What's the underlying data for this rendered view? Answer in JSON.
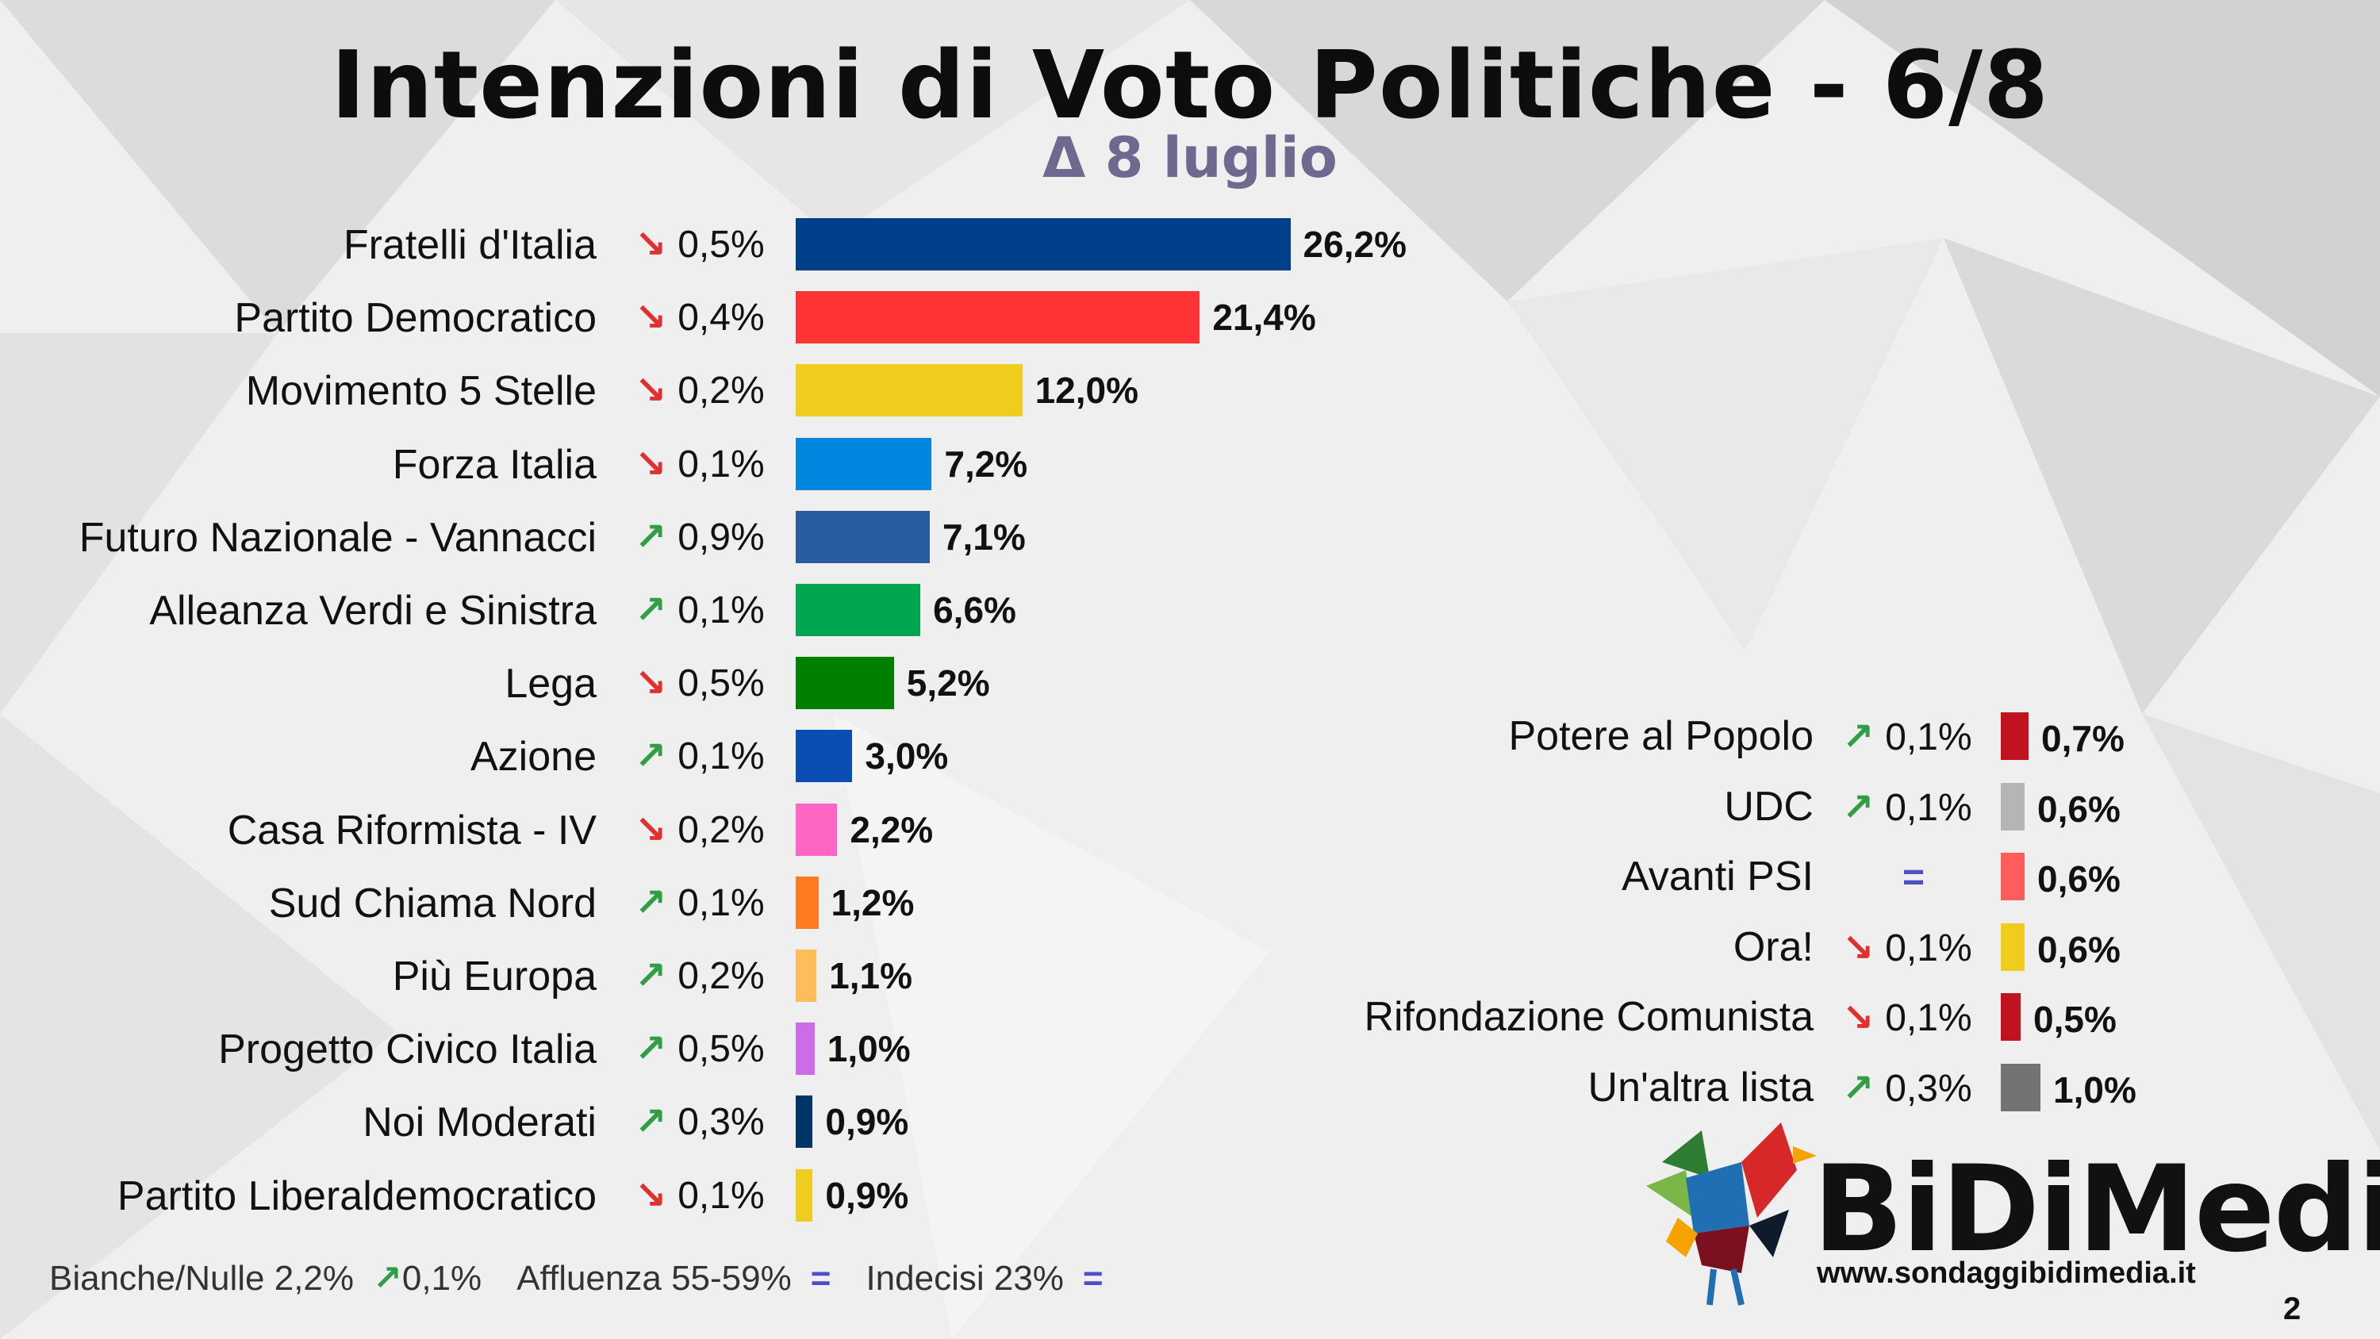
{
  "header": {
    "title": "Intenzioni di Voto Politiche - 6/8",
    "subtitle": "Δ 8 luglio"
  },
  "chart_data": {
    "type": "bar",
    "title": "Intenzioni di Voto Politiche - 6/8",
    "subtitle": "Δ 8 luglio",
    "unit": "%",
    "main": [
      {
        "name": "Fratelli d'Italia",
        "value": 26.2,
        "label": "26,2%",
        "delta": "0,5%",
        "trend": "down",
        "color": "#003f8a"
      },
      {
        "name": "Partito Democratico",
        "value": 21.4,
        "label": "21,4%",
        "delta": "0,4%",
        "trend": "down",
        "color": "#ff3333"
      },
      {
        "name": "Movimento 5 Stelle",
        "value": 12.0,
        "label": "12,0%",
        "delta": "0,2%",
        "trend": "down",
        "color": "#f0cc1e"
      },
      {
        "name": "Forza Italia",
        "value": 7.2,
        "label": "7,2%",
        "delta": "0,1%",
        "trend": "down",
        "color": "#0088e0"
      },
      {
        "name": "Futuro Nazionale - Vannacci",
        "value": 7.1,
        "label": "7,1%",
        "delta": "0,9%",
        "trend": "up",
        "color": "#2a5ca0"
      },
      {
        "name": "Alleanza Verdi e Sinistra",
        "value": 6.6,
        "label": "6,6%",
        "delta": "0,1%",
        "trend": "up",
        "color": "#00a650"
      },
      {
        "name": "Lega",
        "value": 5.2,
        "label": "5,2%",
        "delta": "0,5%",
        "trend": "down",
        "color": "#008000"
      },
      {
        "name": "Azione",
        "value": 3.0,
        "label": "3,0%",
        "delta": "0,1%",
        "trend": "up",
        "color": "#0a4db3"
      },
      {
        "name": "Casa Riformista - IV",
        "value": 2.2,
        "label": "2,2%",
        "delta": "0,2%",
        "trend": "down",
        "color": "#ff66c4"
      },
      {
        "name": "Sud Chiama Nord",
        "value": 1.2,
        "label": "1,2%",
        "delta": "0,1%",
        "trend": "up",
        "color": "#ff7a21"
      },
      {
        "name": "Più Europa",
        "value": 1.1,
        "label": "1,1%",
        "delta": "0,2%",
        "trend": "up",
        "color": "#ffbd59"
      },
      {
        "name": "Progetto Civico Italia",
        "value": 1.0,
        "label": "1,0%",
        "delta": "0,5%",
        "trend": "up",
        "color": "#cc6ce7"
      },
      {
        "name": "Noi Moderati",
        "value": 0.9,
        "label": "0,9%",
        "delta": "0,3%",
        "trend": "up",
        "color": "#003366"
      },
      {
        "name": "Partito Liberaldemocratico",
        "value": 0.9,
        "label": "0,9%",
        "delta": "0,1%",
        "trend": "down",
        "color": "#f0cc1e"
      }
    ],
    "minor": [
      {
        "name": "Potere al Popolo",
        "value": 0.7,
        "label": "0,7%",
        "delta": "0,1%",
        "trend": "up",
        "color": "#c1121f"
      },
      {
        "name": "UDC",
        "value": 0.6,
        "label": "0,6%",
        "delta": "0,1%",
        "trend": "up",
        "color": "#b5b5b5"
      },
      {
        "name": "Avanti PSI",
        "value": 0.6,
        "label": "0,6%",
        "delta": "",
        "trend": "eq",
        "color": "#ff5c5c"
      },
      {
        "name": "Ora!",
        "value": 0.6,
        "label": "0,6%",
        "delta": "0,1%",
        "trend": "down",
        "color": "#f0cc1e"
      },
      {
        "name": "Rifondazione Comunista",
        "value": 0.5,
        "label": "0,5%",
        "delta": "0,1%",
        "trend": "down",
        "color": "#c1121f"
      },
      {
        "name": "Un'altra lista",
        "value": 1.0,
        "label": "1,0%",
        "delta": "0,3%",
        "trend": "up",
        "color": "#737373"
      }
    ]
  },
  "footer": {
    "blank": "Bianche/Nulle 2,2%",
    "blank_delta": "0,1%",
    "turnout": "Affluenza 55-59%",
    "undecided": "Indecisi 23%",
    "eq_symbol": "="
  },
  "brand": {
    "name": "BiDiMedia",
    "url": "www.sondaggibidimedia.it"
  },
  "page_number": "2",
  "arrows": {
    "down": "↘",
    "up": "↗",
    "eq": "="
  }
}
